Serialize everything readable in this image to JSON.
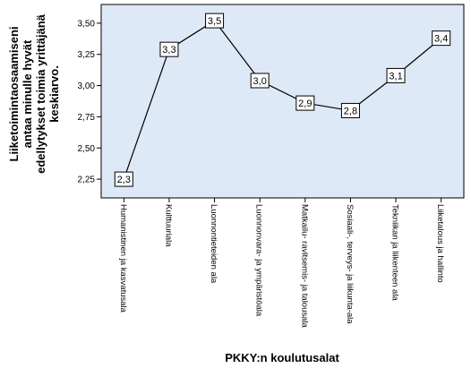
{
  "chart_data": {
    "type": "line",
    "xlabel": "PKKY:n koulutusalat",
    "ylabel": "Liiketoimintaosaamiseni antaa minulle hyvät edellytykset toimia yrittäjänä keskiarvo.",
    "ylabel_lines": [
      "Liiketoimintaosaamiseni",
      "antaa minulle hyvät",
      "edellytykset toimia yrittäjänä",
      "keskiarvo."
    ],
    "categories": [
      "Humanistinen ja kasvatusala",
      "Kulttuuriala",
      "Luonnontieteiden ala",
      "Luonnonvara- ja ympäristöala",
      "Matkailu- ravitsemis- ja talousala",
      "Sosiaali-, terveys- ja liikunta-ala",
      "Tekniikan ja liikenteen ala",
      "Liiketalous ja hallinto"
    ],
    "values": [
      2.25,
      3.29,
      3.52,
      3.04,
      2.86,
      2.8,
      3.08,
      3.38
    ],
    "data_labels": [
      "2,3",
      "3,3",
      "3,5",
      "3,0",
      "2,9",
      "2,8",
      "3,1",
      "3,4"
    ],
    "ylim": [
      2.1,
      3.65
    ],
    "yticks": [
      2.25,
      2.5,
      2.75,
      3.0,
      3.25,
      3.5
    ],
    "ytick_labels": [
      "2,25",
      "2,50",
      "2,75",
      "3,00",
      "3,25",
      "3,50"
    ],
    "grid": false,
    "colors": {
      "plot_background": "#dde9f6",
      "line": "#000000",
      "label_box": "#ffffff"
    }
  }
}
